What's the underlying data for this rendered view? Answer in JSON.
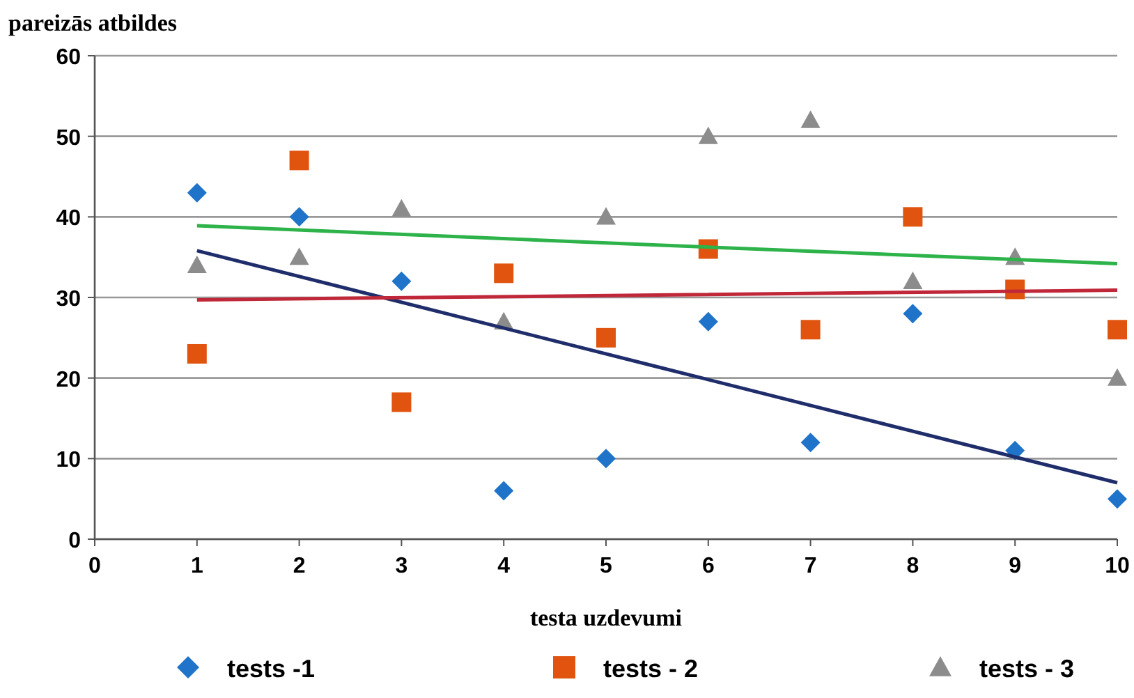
{
  "chart_data": {
    "type": "scatter",
    "xlabel": "testa uzdevumi",
    "ylabel": "pareizās atbildes",
    "x": [
      1,
      2,
      3,
      4,
      5,
      6,
      7,
      8,
      9,
      10
    ],
    "xlim": [
      0,
      10
    ],
    "xticks": [
      0,
      1,
      2,
      3,
      4,
      5,
      6,
      7,
      8,
      9,
      10
    ],
    "ylim": [
      0,
      60
    ],
    "yticks": [
      0,
      10,
      20,
      30,
      40,
      50,
      60
    ],
    "grid": "y",
    "legend": "bottom",
    "series": [
      {
        "name": "tests -1",
        "color": "#1f73c8",
        "marker": "diamond",
        "values": [
          43,
          40,
          32,
          6,
          10,
          27,
          12,
          28,
          11,
          5
        ]
      },
      {
        "name": "tests - 2",
        "color": "#e0540f",
        "marker": "square",
        "values": [
          23,
          47,
          17,
          33,
          25,
          36,
          26,
          40,
          31,
          26
        ]
      },
      {
        "name": "tests - 3",
        "color": "#8c8c8c",
        "marker": "triangle",
        "values": [
          34,
          35,
          41,
          27,
          40,
          50,
          52,
          32,
          35,
          20
        ]
      },
      {
        "type": "line",
        "color": "#1f2d6b",
        "marker": "none",
        "x": [
          1,
          5.5,
          10
        ],
        "values": [
          35.8,
          21.4,
          7
        ]
      },
      {
        "type": "line",
        "color": "#c0283a",
        "marker": "none",
        "x": [
          1,
          5.5,
          10
        ],
        "values": [
          29.7,
          30.3,
          30.9
        ]
      },
      {
        "type": "line",
        "color": "#2db34a",
        "marker": "none",
        "x": [
          1,
          5.5,
          10
        ],
        "values": [
          38.9,
          36.5,
          34.2
        ]
      }
    ]
  }
}
